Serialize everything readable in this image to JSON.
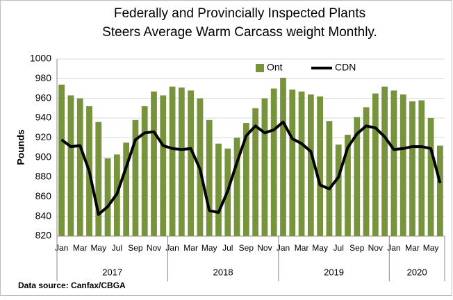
{
  "chart_data": {
    "type": "bar_line",
    "title": "Federally and Provincially Inspected Plants",
    "subtitle": "Steers Average Warm Carcass weight Monthly.",
    "y_label": "Pounds",
    "source": "Data source: Canfax/CBGA",
    "categories": [
      "Jan",
      null,
      "Mar",
      null,
      "May",
      null,
      "Jul",
      null,
      "Sep",
      null,
      "Nov",
      null,
      "Jan",
      null,
      "Mar",
      null,
      "May",
      null,
      "Jul",
      null,
      "Sep",
      null,
      "Nov",
      null,
      "Jan",
      null,
      "Mar",
      null,
      "May",
      null,
      "Jul",
      null,
      "Sep",
      null,
      "Nov",
      null,
      "Jan",
      null,
      "Mar",
      null,
      "May",
      null
    ],
    "years": [
      "2017",
      "2018",
      "2019",
      "2020"
    ],
    "series": [
      {
        "name": "Ont",
        "kind": "bar",
        "color": "#77933c",
        "values": [
          974,
          963,
          960,
          952,
          936,
          899,
          903,
          915,
          938,
          952,
          967,
          963,
          972,
          971,
          968,
          960,
          938,
          914,
          909,
          920,
          935,
          950,
          960,
          970,
          981,
          969,
          967,
          964,
          962,
          937,
          913,
          923,
          941,
          951,
          965,
          972,
          968,
          964,
          957,
          958,
          940,
          912
        ]
      },
      {
        "name": "CDN",
        "kind": "line",
        "color": "#000000",
        "values": [
          918,
          911,
          912,
          886,
          842,
          850,
          863,
          890,
          918,
          925,
          926,
          912,
          909,
          908,
          909,
          888,
          846,
          844,
          866,
          895,
          922,
          932,
          925,
          928,
          936,
          919,
          914,
          906,
          872,
          868,
          880,
          910,
          924,
          932,
          930,
          921,
          908,
          909,
          911,
          911,
          909,
          874
        ]
      }
    ],
    "ylim": [
      820,
      1000
    ],
    "yticks": [
      820,
      840,
      860,
      880,
      900,
      920,
      940,
      960,
      980,
      1000
    ],
    "grid": true,
    "legend": "top"
  }
}
